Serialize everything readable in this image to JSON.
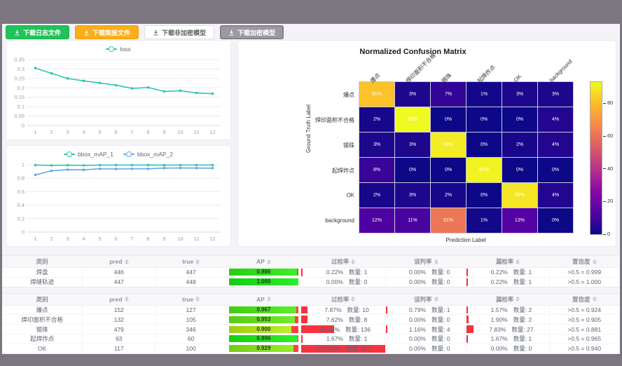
{
  "frame": {
    "chrome_color": "#7b7680",
    "page_bg": "#f4f4f8"
  },
  "toolbar": {
    "buttons": [
      {
        "label": "下载日志文件",
        "variant": "green"
      },
      {
        "label": "下载简报文件",
        "variant": "amber"
      },
      {
        "label": "下载非加密模型",
        "variant": "white"
      },
      {
        "label": "下载加密模型",
        "variant": "gray"
      }
    ]
  },
  "chart_data": [
    {
      "type": "line",
      "title": "",
      "x": [
        1,
        2,
        3,
        4,
        5,
        6,
        7,
        8,
        9,
        10,
        11,
        12
      ],
      "series": [
        {
          "name": "loss",
          "color": "#2fc6ae",
          "values": [
            0.305,
            0.277,
            0.25,
            0.237,
            0.226,
            0.214,
            0.197,
            0.202,
            0.181,
            0.185,
            0.173,
            0.169
          ]
        }
      ],
      "ylim": [
        0,
        0.35
      ],
      "y_ticks": [
        0,
        0.05,
        0.1,
        0.15,
        0.2,
        0.25,
        0.3,
        0.35
      ],
      "grid": true,
      "legend_position": "top"
    },
    {
      "type": "line",
      "title": "",
      "x": [
        1,
        2,
        3,
        4,
        5,
        6,
        7,
        8,
        9,
        10,
        11,
        12
      ],
      "series": [
        {
          "name": "bbox_mAP_1",
          "color": "#2fc6ae",
          "values": [
            0.995,
            0.991,
            0.994,
            0.991,
            0.995,
            0.996,
            0.996,
            0.997,
            0.994,
            0.996,
            0.996,
            0.996
          ]
        },
        {
          "name": "bbox_mAP_2",
          "color": "#5fa8ee",
          "values": [
            0.85,
            0.91,
            0.928,
            0.925,
            0.94,
            0.937,
            0.94,
            0.94,
            0.951,
            0.952,
            0.951,
            0.95
          ]
        }
      ],
      "ylim": [
        0,
        1
      ],
      "y_ticks": [
        0,
        0.2,
        0.4,
        0.6,
        0.8,
        1
      ],
      "grid": true,
      "legend_position": "top"
    },
    {
      "type": "heatmap",
      "title": "Normalized Confusion Matrix",
      "xlabel": "Prediction Label",
      "ylabel": "Ground Truth Label",
      "labels": [
        "爆点",
        "焊印面积不合格",
        "锡珠",
        "起焊炸点",
        "OK",
        "background"
      ],
      "matrix_percent": [
        [
          81,
          3,
          7,
          1,
          3,
          3
        ],
        [
          2,
          93,
          0,
          0,
          0,
          4
        ],
        [
          3,
          3,
          90,
          0,
          2,
          4
        ],
        [
          8,
          0,
          0,
          92,
          0,
          0
        ],
        [
          2,
          3,
          2,
          0,
          89,
          4
        ],
        [
          12,
          11,
          61,
          1,
          13,
          0
        ]
      ],
      "vmax": 93,
      "colorbar_ticks": [
        0,
        20,
        40,
        60,
        80
      ],
      "colormap": "plasma"
    }
  ],
  "tables": [
    {
      "headers": [
        "类别",
        "pred",
        "true",
        "AP",
        "过检率",
        "误判率",
        "漏检率",
        "置信度"
      ],
      "rows": [
        {
          "category": "焊盘",
          "pred": "446",
          "true": "447",
          "ap": 0.986,
          "ap_label": "0.986",
          "over_pct": 0.22,
          "over_label": "0.22%",
          "over_count": "数量: 1",
          "mis_pct": 0.0,
          "mis_label": "0.00%",
          "mis_count": "数量: 0",
          "miss_pct": 0.22,
          "miss_label": "0.22%",
          "miss_count": "数量: 1",
          "conf": ">0.5 = 0.999"
        },
        {
          "category": "焊缝轨迹",
          "pred": "447",
          "true": "448",
          "ap": 1.0,
          "ap_label": "1.000",
          "over_pct": 0.0,
          "over_label": "0.00%",
          "over_count": "数量: 0",
          "mis_pct": 0.0,
          "mis_label": "0.00%",
          "mis_count": "数量: 0",
          "miss_pct": 0.22,
          "miss_label": "0.22%",
          "miss_count": "数量: 1",
          "conf": ">0.5 = 1.000"
        }
      ]
    },
    {
      "headers": [
        "类别",
        "pred",
        "true",
        "AP",
        "过检率",
        "误判率",
        "漏检率",
        "置信度"
      ],
      "rows": [
        {
          "category": "爆点",
          "pred": "152",
          "true": "127",
          "ap": 0.967,
          "ap_label": "0.967",
          "over_pct": 7.87,
          "over_label": "7.87%",
          "over_count": "数量: 10",
          "mis_pct": 0.79,
          "mis_label": "0.79%",
          "mis_count": "数量: 1",
          "miss_pct": 1.57,
          "miss_label": "1.57%",
          "miss_count": "数量: 2",
          "conf": ">0.5 = 0.924"
        },
        {
          "category": "焊印面积不合格",
          "pred": "132",
          "true": "105",
          "ap": 0.953,
          "ap_label": "0.953",
          "over_pct": 7.62,
          "over_label": "7.62%",
          "over_count": "数量: 8",
          "mis_pct": 0.0,
          "mis_label": "0.00%",
          "mis_count": "数量: 0",
          "miss_pct": 1.9,
          "miss_label": "1.90%",
          "miss_count": "数量: 2",
          "conf": ">0.5 = 0.905"
        },
        {
          "category": "锡珠",
          "pred": "479",
          "true": "346",
          "ap": 0.9,
          "ap_label": "0.900",
          "over_pct": 39.42,
          "over_label": "39.42%",
          "over_count": "数量: 136",
          "mis_pct": 1.16,
          "mis_label": "1.16%",
          "mis_count": "数量: 4",
          "miss_pct": 7.83,
          "miss_label": "7.83%",
          "miss_count": "数量: 27",
          "conf": ">0.5 = 0.881"
        },
        {
          "category": "起焊炸点",
          "pred": "63",
          "true": "60",
          "ap": 0.996,
          "ap_label": "0.996",
          "over_pct": 1.67,
          "over_label": "1.67%",
          "over_count": "数量: 1",
          "mis_pct": 0.0,
          "mis_label": "0.00%",
          "mis_count": "数量: 0",
          "miss_pct": 1.67,
          "miss_label": "1.67%",
          "miss_count": "数量: 1",
          "conf": ">0.5 = 0.965"
        },
        {
          "category": "OK",
          "pred": "117",
          "true": "100",
          "ap": 0.929,
          "ap_label": "0.929",
          "over_pct": 117.0,
          "over_label": "117.00%",
          "over_count": "数量: 117",
          "mis_pct": 0.0,
          "mis_label": "0.00%",
          "mis_count": "数量: 0",
          "miss_pct": 0.0,
          "miss_label": "0.00%",
          "miss_count": "数量: 0",
          "conf": ">0.5 = 0.940"
        }
      ]
    }
  ]
}
